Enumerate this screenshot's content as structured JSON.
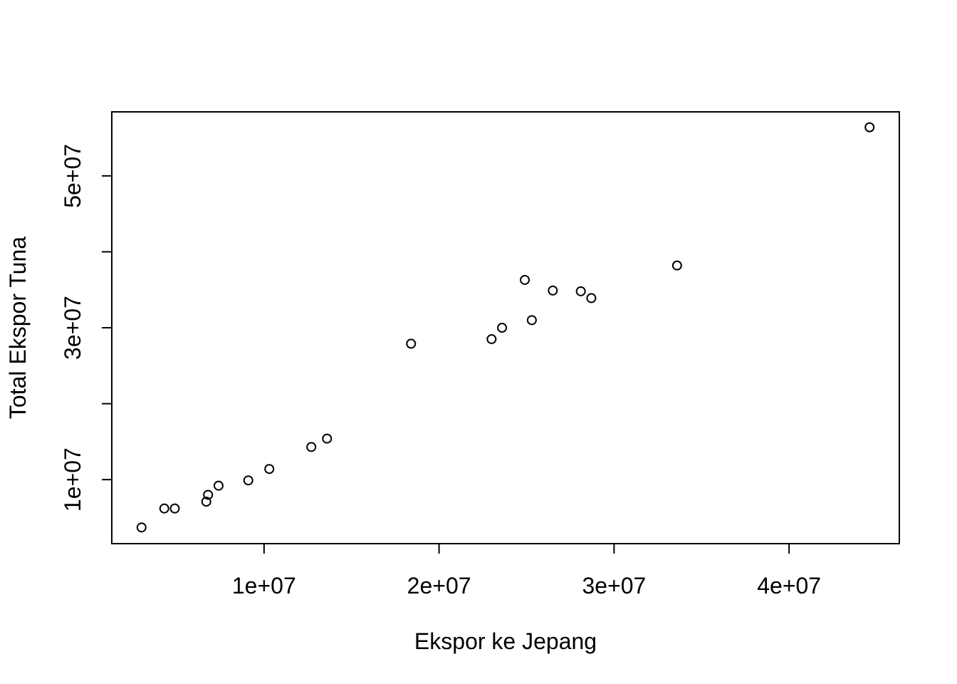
{
  "chart_data": {
    "type": "scatter",
    "title": "",
    "xlabel": "Ekspor ke Jepang",
    "ylabel": "Total Ekspor Tuna",
    "xlim": [
      1300000,
      46300000
    ],
    "ylim": [
      1570000,
      58430000
    ],
    "x_ticks": [
      {
        "value": 10000000,
        "label": "1e+07"
      },
      {
        "value": 20000000,
        "label": "2e+07"
      },
      {
        "value": 30000000,
        "label": "3e+07"
      },
      {
        "value": 40000000,
        "label": "4e+07"
      }
    ],
    "y_ticks": [
      {
        "value": 10000000,
        "label": "1e+07"
      },
      {
        "value": 20000000,
        "label": ""
      },
      {
        "value": 30000000,
        "label": "3e+07"
      },
      {
        "value": 40000000,
        "label": ""
      },
      {
        "value": 50000000,
        "label": "5e+07"
      }
    ],
    "grid": false,
    "marker": "open-circle",
    "color": "#000000",
    "points": [
      {
        "x": 3000000,
        "y": 3700000
      },
      {
        "x": 4300000,
        "y": 6200000
      },
      {
        "x": 4900000,
        "y": 6200000
      },
      {
        "x": 6700000,
        "y": 7100000
      },
      {
        "x": 6800000,
        "y": 8000000
      },
      {
        "x": 7400000,
        "y": 9200000
      },
      {
        "x": 9100000,
        "y": 9900000
      },
      {
        "x": 10300000,
        "y": 11400000
      },
      {
        "x": 12700000,
        "y": 14300000
      },
      {
        "x": 13600000,
        "y": 15400000
      },
      {
        "x": 18400000,
        "y": 27900000
      },
      {
        "x": 23000000,
        "y": 28500000
      },
      {
        "x": 23600000,
        "y": 30000000
      },
      {
        "x": 24900000,
        "y": 36300000
      },
      {
        "x": 25300000,
        "y": 31000000
      },
      {
        "x": 26500000,
        "y": 34900000
      },
      {
        "x": 28100000,
        "y": 34800000
      },
      {
        "x": 28700000,
        "y": 33900000
      },
      {
        "x": 33600000,
        "y": 38200000
      },
      {
        "x": 44600000,
        "y": 56400000
      }
    ]
  }
}
